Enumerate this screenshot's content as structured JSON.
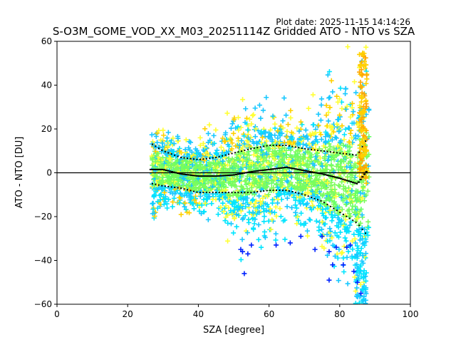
{
  "chart_data": {
    "type": "scatter",
    "plot_date": "Plot date: 2025-11-15 14:14:26",
    "title": "S-O3M_GOME_VOD_XX_M03_20251114Z Gridded ATO - NTO vs SZA",
    "xlabel": "SZA [degree]",
    "ylabel": "ATO - NTO [DU]",
    "xlim": [
      0,
      100
    ],
    "ylim": [
      -60,
      60
    ],
    "xticks": [
      0,
      20,
      40,
      60,
      80,
      100
    ],
    "yticks": [
      -60,
      -40,
      -20,
      0,
      20,
      40,
      60
    ],
    "xtick_labels": [
      "0",
      "20",
      "40",
      "60",
      "80",
      "100"
    ],
    "ytick_labels": [
      "−60",
      "−40",
      "−20",
      "0",
      "20",
      "40",
      "60"
    ],
    "zero_line": 0,
    "marker": "+",
    "scatter_colors": [
      "#7cfc5c",
      "#66ff66",
      "#00e5ff",
      "#19c8ff",
      "#ffff33",
      "#ffd000",
      "#ffa500",
      "#0022ff"
    ],
    "mean_curve": {
      "x": [
        26.5,
        30,
        35,
        40,
        45,
        50,
        55,
        60,
        65,
        70,
        75,
        80,
        85,
        88
      ],
      "y": [
        1.5,
        1.5,
        -0.5,
        -1.5,
        -1.5,
        -1.0,
        0.5,
        1.5,
        2.5,
        1.0,
        -0.5,
        -2.5,
        -5.0,
        1.5
      ]
    },
    "upper_band": {
      "x": [
        27,
        30,
        35,
        40,
        45,
        50,
        55,
        60,
        65,
        70,
        75,
        80,
        85,
        87.5
      ],
      "y": [
        13,
        10,
        7,
        6,
        7,
        9,
        11,
        12.5,
        12.5,
        11,
        10,
        9,
        8,
        15
      ]
    },
    "lower_band": {
      "x": [
        27,
        30,
        35,
        40,
        45,
        50,
        55,
        60,
        65,
        70,
        75,
        80,
        85,
        87.5
      ],
      "y": [
        -5,
        -6,
        -7,
        -9,
        -9,
        -9,
        -9,
        -8,
        -8,
        -10,
        -13,
        -18,
        -23,
        -28
      ]
    },
    "blue_outliers": [
      {
        "x": 52,
        "y": -35
      },
      {
        "x": 52.5,
        "y": -36
      },
      {
        "x": 53,
        "y": -46
      },
      {
        "x": 54,
        "y": -37
      },
      {
        "x": 55,
        "y": -33
      },
      {
        "x": 62,
        "y": -33
      },
      {
        "x": 66,
        "y": -32
      },
      {
        "x": 69,
        "y": -29
      },
      {
        "x": 73,
        "y": -35
      },
      {
        "x": 75,
        "y": -29
      },
      {
        "x": 77,
        "y": -36
      },
      {
        "x": 78,
        "y": -42
      },
      {
        "x": 79,
        "y": -34
      },
      {
        "x": 81,
        "y": -42
      },
      {
        "x": 82,
        "y": -34
      },
      {
        "x": 84,
        "y": -45
      },
      {
        "x": 85,
        "y": -50
      },
      {
        "x": 86,
        "y": -55
      },
      {
        "x": 77,
        "y": -49
      },
      {
        "x": 83,
        "y": -33
      }
    ]
  }
}
